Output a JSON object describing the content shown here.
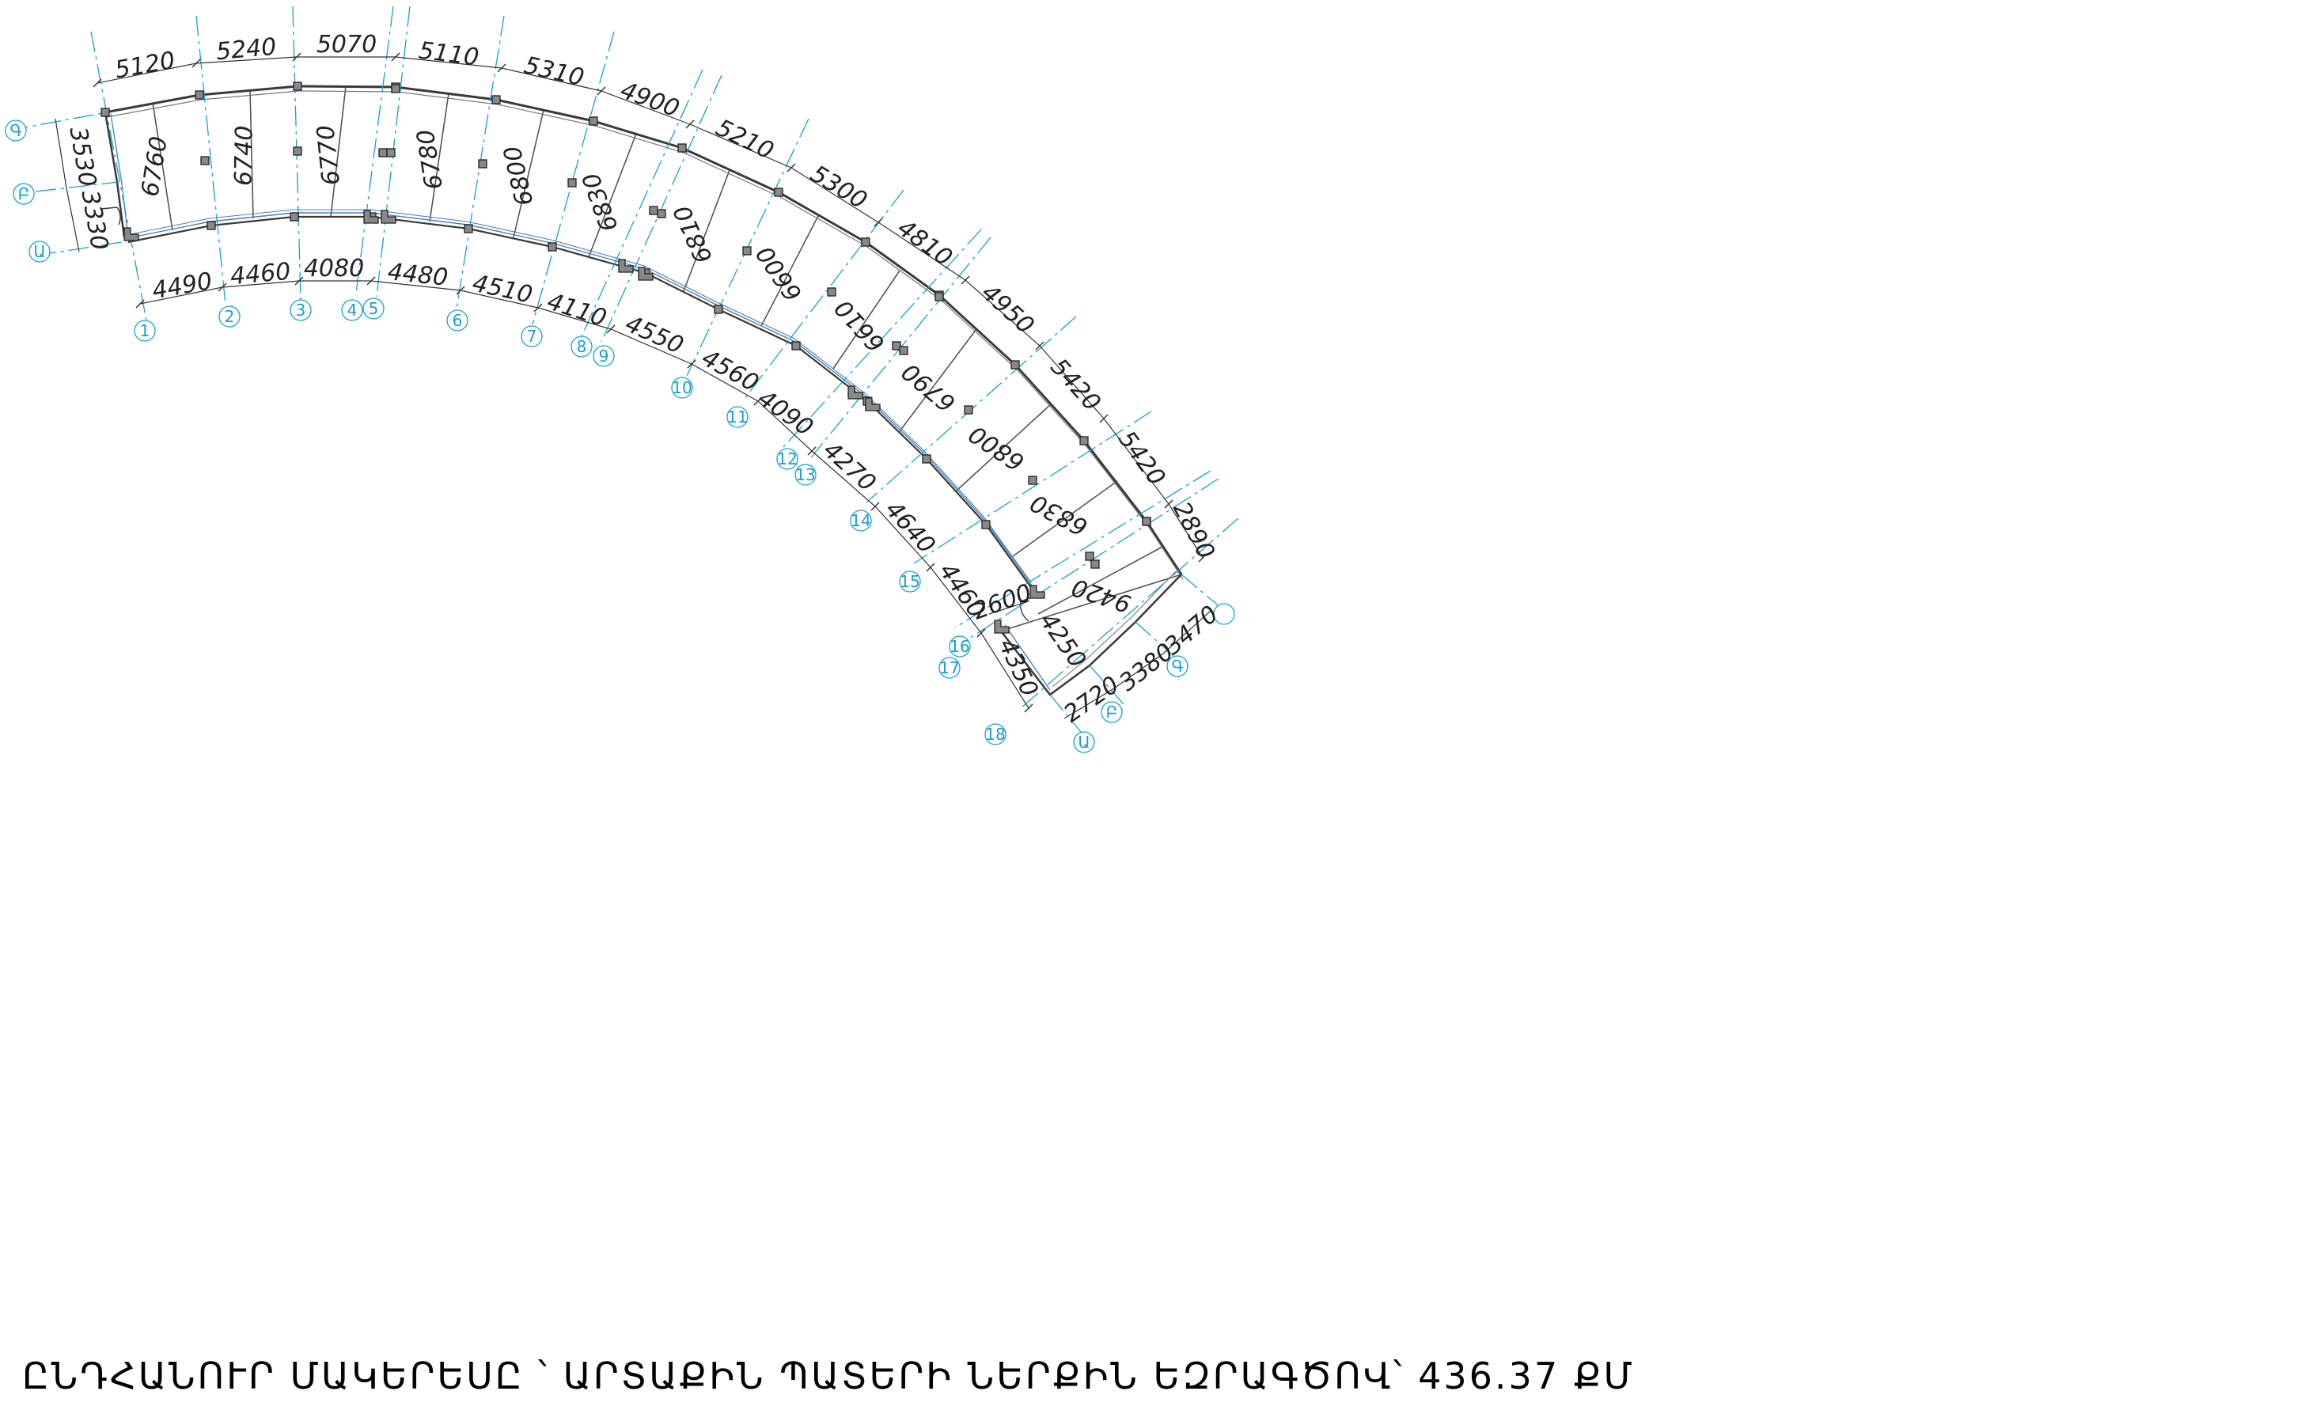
{
  "title": "ԸՆԴՀԱՆՈՒՐ ՄԱԿԵՐԵՍԸ ՝ ԱՐՏԱՔԻՆ ՊԱՏԵՐԻ ՆԵՐՔԻՆ ԵԶՐԱԳԾՈՎ՝ 436.37 ՔՄ",
  "colors": {
    "axis": "#1a9fd0",
    "line": "#3a3a3a",
    "glazing": "#4a7fb5",
    "column": "#888888"
  },
  "radial_axes": [
    "1",
    "2",
    "3",
    "4",
    "5",
    "6",
    "7",
    "8",
    "9",
    "10",
    "11",
    "12",
    "13",
    "14",
    "15",
    "16",
    "17",
    "18"
  ],
  "ring_axes_start": [
    "Ա",
    "Բ",
    "Գ"
  ],
  "ring_axes_end": [
    "Ա",
    "Բ",
    "Գ"
  ],
  "outer_dimensions": [
    "5120",
    "5240",
    "5070",
    "5110",
    "5310",
    "4900",
    "5210",
    "5300",
    "4810",
    "4950",
    "5420",
    "5420",
    "2890"
  ],
  "inner_dimensions": [
    "4490",
    "4460",
    "4080",
    "4480",
    "4510",
    "4110",
    "4550",
    "4560",
    "4090",
    "4270",
    "4640",
    "4460",
    "4350"
  ],
  "room_depths": [
    "6760",
    "6740",
    "6770",
    "6780",
    "6800",
    "6830",
    "6810",
    "6600",
    "6610",
    "6790",
    "6800",
    "6830",
    "9420"
  ],
  "start_ring_dimensions": [
    "3530",
    "3330"
  ],
  "end_ring_dimensions": [
    "3470",
    "3380",
    "2720"
  ],
  "extra_dimensions": [
    "2600",
    "4250"
  ]
}
